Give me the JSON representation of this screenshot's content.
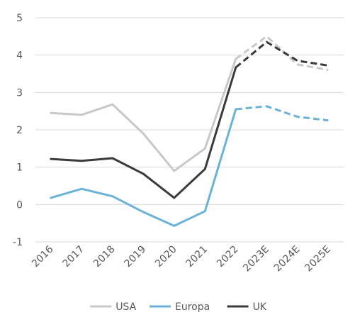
{
  "chart_data": {
    "type": "line",
    "categories": [
      "2016",
      "2017",
      "2018",
      "2019",
      "2020",
      "2021",
      "2022",
      "2023E",
      "2024E",
      "2025E"
    ],
    "estimate_start_index": 6,
    "series": [
      {
        "name": "USA",
        "color": "#c8c8c8",
        "values": [
          2.45,
          2.4,
          2.68,
          1.9,
          0.9,
          1.5,
          3.9,
          4.5,
          3.75,
          3.6
        ]
      },
      {
        "name": "Europa",
        "color": "#6ab2d8",
        "values": [
          0.18,
          0.42,
          0.22,
          -0.2,
          -0.57,
          -0.18,
          2.55,
          2.63,
          2.35,
          2.25
        ]
      },
      {
        "name": "UK",
        "color": "#3a3a3a",
        "values": [
          1.22,
          1.17,
          1.24,
          0.82,
          0.18,
          0.95,
          3.67,
          4.35,
          3.85,
          3.72
        ]
      }
    ],
    "ylim": [
      -1,
      5
    ],
    "yticks": [
      -1,
      0,
      1,
      2,
      3,
      4,
      5
    ],
    "grid": true,
    "legend": "bottom",
    "title": "",
    "xlabel": "",
    "ylabel": ""
  }
}
